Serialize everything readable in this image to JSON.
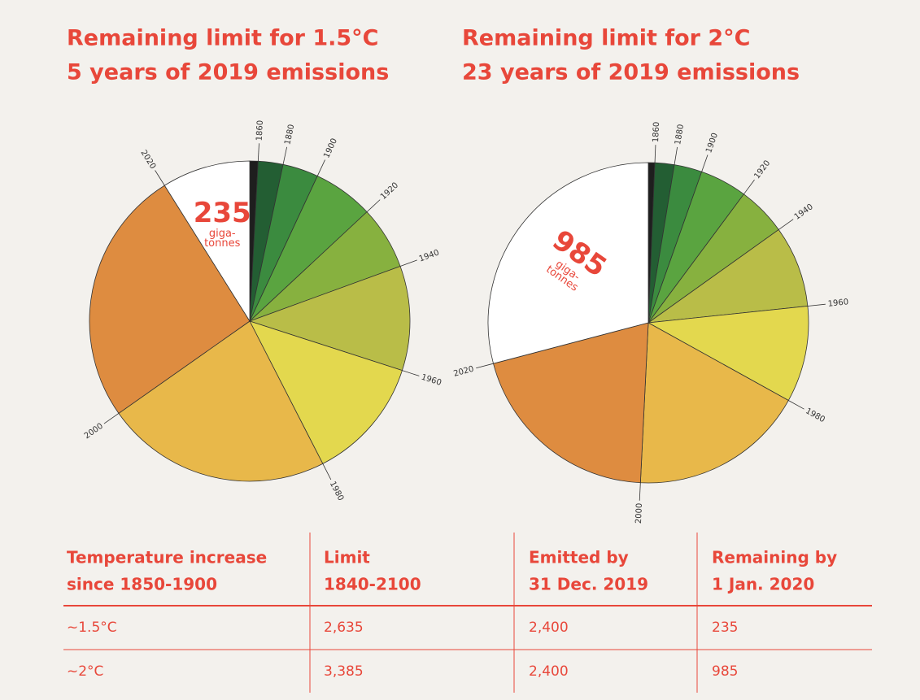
{
  "chart_data": [
    {
      "type": "pie",
      "title": [
        "Remaining limit for 1.5°C",
        "5 years of 2019 emissions"
      ],
      "categories": [
        "1860",
        "1880",
        "1900",
        "1920",
        "1940",
        "1960",
        "1980",
        "2000",
        "2020"
      ],
      "values": [
        22,
        66,
        95,
        161,
        168,
        278,
        329,
        600,
        681
      ],
      "colors": [
        "#1e1e1e",
        "#235e33",
        "#3b8b3f",
        "#5aa440",
        "#87b13f",
        "#b9bd48",
        "#e3d84e",
        "#e8b84a",
        "#de8c40"
      ],
      "remaining": 235,
      "remaining_color": "#ffffff",
      "unit": [
        "giga-",
        "tonnes"
      ]
    },
    {
      "type": "pie",
      "title": [
        "Remaining limit for 2°C",
        "23 years of 2019 emissions"
      ],
      "categories": [
        "1860",
        "1880",
        "1900",
        "1920",
        "1940",
        "1960",
        "1980",
        "2000",
        "2020"
      ],
      "values": [
        22,
        66,
        95,
        161,
        168,
        278,
        329,
        600,
        681
      ],
      "colors": [
        "#1e1e1e",
        "#235e33",
        "#3b8b3f",
        "#5aa440",
        "#87b13f",
        "#b9bd48",
        "#e3d84e",
        "#e8b84a",
        "#de8c40"
      ],
      "remaining": 985,
      "remaining_color": "#ffffff",
      "unit": [
        "giga-",
        "tonnes"
      ]
    }
  ],
  "table": {
    "header": [
      [
        "Temperature increase",
        "since 1850-1900"
      ],
      [
        "Limit",
        "1840-2100"
      ],
      [
        "Emitted by",
        "31 Dec. 2019"
      ],
      [
        "Remaining by",
        "1 Jan. 2020"
      ]
    ],
    "rows": [
      [
        "~1.5°C",
        "2,635",
        "2,400",
        "235"
      ],
      [
        "~2°C",
        "3,385",
        "2,400",
        "985"
      ]
    ]
  }
}
